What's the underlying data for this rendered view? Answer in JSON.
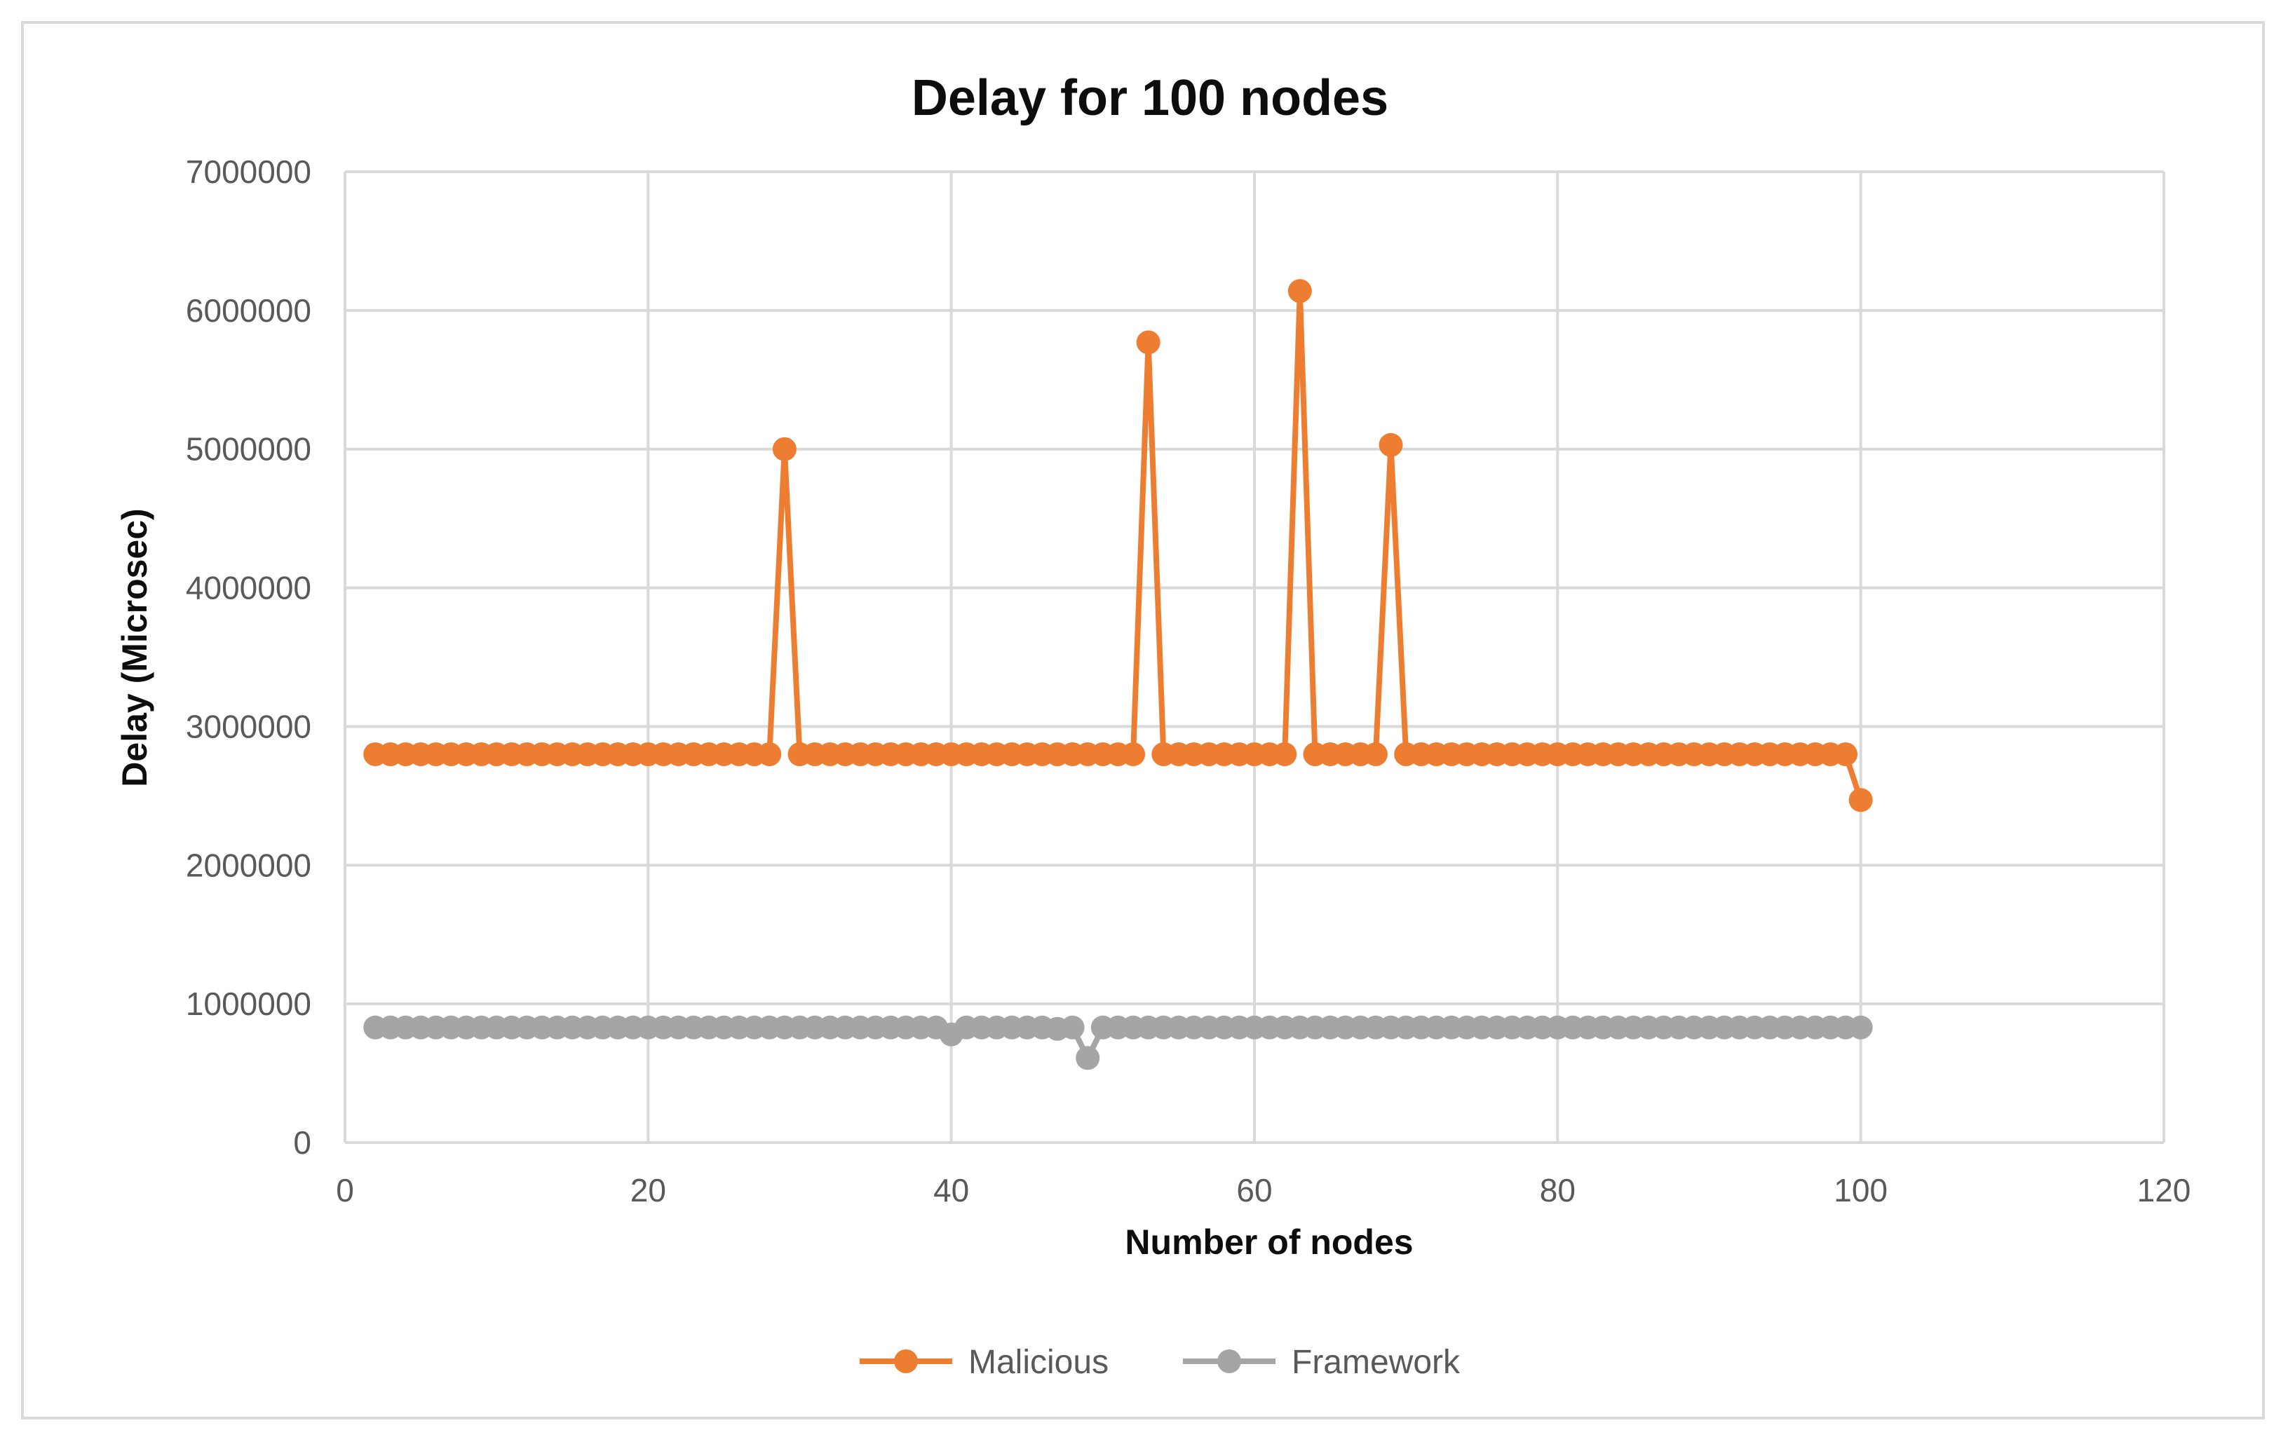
{
  "chart_data": {
    "type": "line",
    "title": "Delay for 100 nodes",
    "xlabel": "Number of nodes",
    "ylabel": "Delay (Microsec)",
    "xlim": [
      0,
      120
    ],
    "ylim": [
      0,
      7000000
    ],
    "x_ticks": [
      "0",
      "20",
      "40",
      "60",
      "80",
      "100",
      "120"
    ],
    "y_ticks": [
      "0",
      "1000000",
      "2000000",
      "3000000",
      "4000000",
      "5000000",
      "6000000",
      "7000000"
    ],
    "grid": true,
    "legend_position": "bottom",
    "x": [
      2,
      3,
      4,
      5,
      6,
      7,
      8,
      9,
      10,
      11,
      12,
      13,
      14,
      15,
      16,
      17,
      18,
      19,
      20,
      21,
      22,
      23,
      24,
      25,
      26,
      27,
      28,
      29,
      30,
      31,
      32,
      33,
      34,
      35,
      36,
      37,
      38,
      39,
      40,
      41,
      42,
      43,
      44,
      45,
      46,
      47,
      48,
      49,
      50,
      51,
      52,
      53,
      54,
      55,
      56,
      57,
      58,
      59,
      60,
      61,
      62,
      63,
      64,
      65,
      66,
      67,
      68,
      69,
      70,
      71,
      72,
      73,
      74,
      75,
      76,
      77,
      78,
      79,
      80,
      81,
      82,
      83,
      84,
      85,
      86,
      87,
      88,
      89,
      90,
      91,
      92,
      93,
      94,
      95,
      96,
      97,
      98,
      99,
      100
    ],
    "series": [
      {
        "name": "Malicious",
        "color": "#ed7d31",
        "values": [
          2800000,
          2800000,
          2800000,
          2800000,
          2800000,
          2800000,
          2800000,
          2800000,
          2800000,
          2800000,
          2800000,
          2800000,
          2800000,
          2800000,
          2800000,
          2800000,
          2800000,
          2800000,
          2800000,
          2800000,
          2800000,
          2800000,
          2800000,
          2800000,
          2800000,
          2800000,
          2800000,
          5000000,
          2800000,
          2800000,
          2800000,
          2800000,
          2800000,
          2800000,
          2800000,
          2800000,
          2800000,
          2800000,
          2800000,
          2800000,
          2800000,
          2800000,
          2800000,
          2800000,
          2800000,
          2800000,
          2800000,
          2800000,
          2800000,
          2800000,
          2800000,
          5770000,
          2800000,
          2800000,
          2800000,
          2800000,
          2800000,
          2800000,
          2800000,
          2800000,
          2800000,
          6140000,
          2800000,
          2800000,
          2800000,
          2800000,
          2800000,
          5030000,
          2800000,
          2800000,
          2800000,
          2800000,
          2800000,
          2800000,
          2800000,
          2800000,
          2800000,
          2800000,
          2800000,
          2800000,
          2800000,
          2800000,
          2800000,
          2800000,
          2800000,
          2800000,
          2800000,
          2800000,
          2800000,
          2800000,
          2800000,
          2800000,
          2800000,
          2800000,
          2800000,
          2800000,
          2800000,
          2800000,
          2470000
        ]
      },
      {
        "name": "Framework",
        "color": "#a5a5a5",
        "values": [
          830000,
          830000,
          830000,
          830000,
          830000,
          830000,
          830000,
          830000,
          830000,
          830000,
          830000,
          830000,
          830000,
          830000,
          830000,
          830000,
          830000,
          830000,
          830000,
          830000,
          830000,
          830000,
          830000,
          830000,
          830000,
          830000,
          830000,
          830000,
          830000,
          830000,
          830000,
          830000,
          830000,
          830000,
          830000,
          830000,
          830000,
          830000,
          780000,
          830000,
          830000,
          830000,
          830000,
          830000,
          830000,
          820000,
          830000,
          610000,
          830000,
          830000,
          830000,
          830000,
          830000,
          830000,
          830000,
          830000,
          830000,
          830000,
          830000,
          830000,
          830000,
          830000,
          830000,
          830000,
          830000,
          830000,
          830000,
          830000,
          830000,
          830000,
          830000,
          830000,
          830000,
          830000,
          830000,
          830000,
          830000,
          830000,
          830000,
          830000,
          830000,
          830000,
          830000,
          830000,
          830000,
          830000,
          830000,
          830000,
          830000,
          830000,
          830000,
          830000,
          830000,
          830000,
          830000,
          830000,
          830000,
          830000,
          830000
        ]
      }
    ]
  }
}
